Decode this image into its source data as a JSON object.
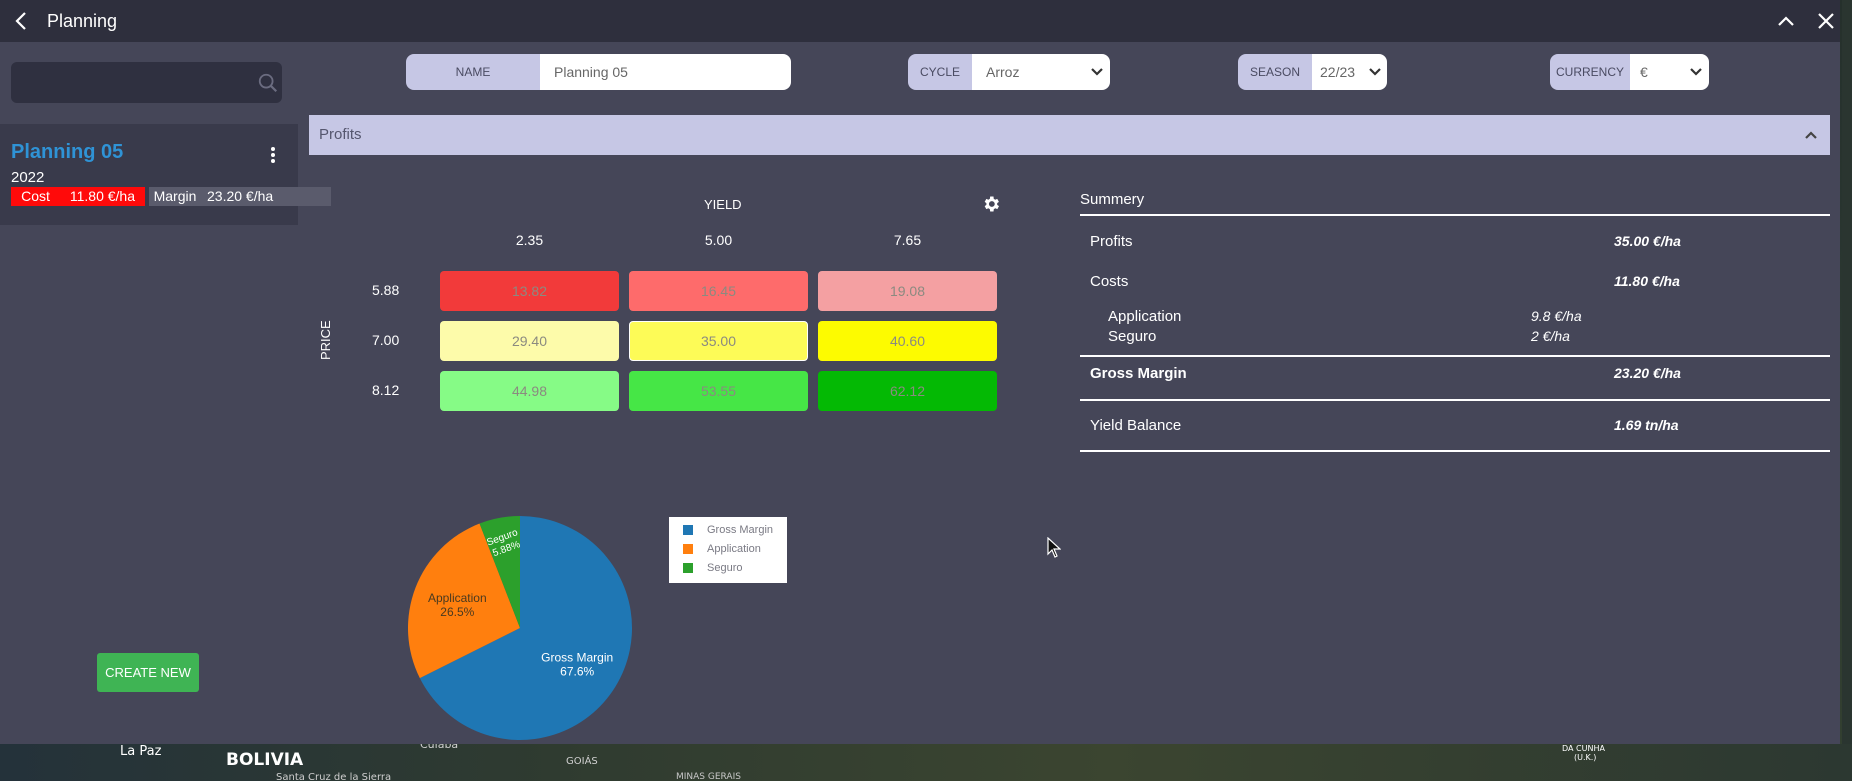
{
  "window": {
    "title": "Planning"
  },
  "sidebar": {
    "search_placeholder": "",
    "plan": {
      "title": "Planning 05",
      "year": "2022",
      "cost_label": "Cost",
      "cost_value": "11.80 €/ha",
      "margin_label": "Margin",
      "margin_value": "23.20 €/ha"
    },
    "create_label": "CREATE NEW"
  },
  "form": {
    "name": {
      "label": "NAME",
      "value": "Planning 05"
    },
    "cycle": {
      "label": "CYCLE",
      "value": "Arroz"
    },
    "season": {
      "label": "SEASON",
      "value": "22/23"
    },
    "currency": {
      "label": "CURRENCY",
      "value": "€"
    }
  },
  "section": {
    "title": "Profits"
  },
  "grid": {
    "yield_label": "YIELD",
    "price_label": "PRICE",
    "yields": [
      "2.35",
      "5.00",
      "7.65"
    ],
    "prices": [
      "5.88",
      "7.00",
      "8.12"
    ],
    "cells": [
      [
        "13.82",
        "16.45",
        "19.08"
      ],
      [
        "29.40",
        "35.00",
        "40.60"
      ],
      [
        "44.98",
        "53.55",
        "62.12"
      ]
    ],
    "colors": [
      [
        "#f23a3a",
        "#fe6b6b",
        "#f4a0a2"
      ],
      [
        "#fdfbaa",
        "#fdfb57",
        "#fdfb00"
      ],
      [
        "#86fb86",
        "#46e646",
        "#04b904"
      ]
    ]
  },
  "summary": {
    "title": "Summery",
    "profits_label": "Profits",
    "profits_value": "35.00 €/ha",
    "costs_label": "Costs",
    "costs_value": "11.80 €/ha",
    "application_label": "Application",
    "application_value": "9.8 €/ha",
    "seguro_label": "Seguro",
    "seguro_value": "2 €/ha",
    "gross_margin_label": "Gross Margin",
    "gross_margin_value": "23.20 €/ha",
    "yield_balance_label": "Yield Balance",
    "yield_balance_value": "1.69 tn/ha"
  },
  "chart_data": {
    "type": "pie",
    "categories": [
      "Gross Margin",
      "Application",
      "Seguro"
    ],
    "values": [
      67.6,
      26.5,
      5.88
    ],
    "labels": [
      "67.6%",
      "26.5%",
      "5.88%"
    ],
    "colors": [
      "#1f77b4",
      "#ff7f0e",
      "#2ca02c"
    ],
    "legend": "right"
  },
  "map": {
    "labels": [
      "La Paz",
      "BOLIVIA",
      "Cuiabá",
      "GOIÁS",
      "MINAS GERAIS",
      "Santa Cruz de la Sierra",
      "DA CUNHA",
      "(U.K.)"
    ]
  }
}
